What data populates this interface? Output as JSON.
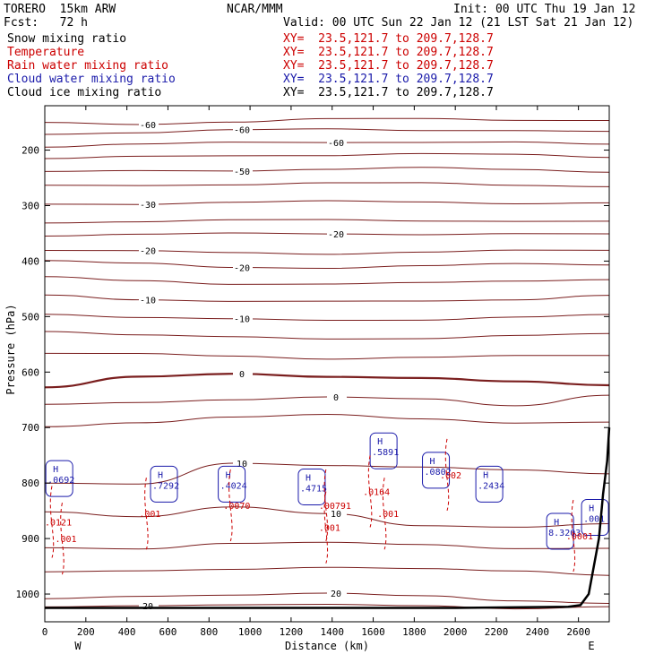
{
  "header": {
    "model": "TORERO  15km ARW",
    "center": "NCAR/MMM",
    "init": "Init: 00 UTC Thu 19 Jan 12",
    "fcst": "Fcst:   72 h",
    "valid": "Valid: 00 UTC Sun 22 Jan 12 (21 LST Sat 21 Jan 12)"
  },
  "fields": [
    {
      "name": "Snow mixing ratio",
      "xy": "XY=  23.5,121.7 to 209.7,128.7",
      "color": "#000000"
    },
    {
      "name": "Temperature",
      "xy": "XY=  23.5,121.7 to 209.7,128.7",
      "color": "#cc0000"
    },
    {
      "name": "Rain water mixing ratio",
      "xy": "XY=  23.5,121.7 to 209.7,128.7",
      "color": "#cc0000"
    },
    {
      "name": "Cloud water mixing ratio",
      "xy": "XY=  23.5,121.7 to 209.7,128.7",
      "color": "#1a1aaa"
    },
    {
      "name": "Cloud ice mixing ratio",
      "xy": "XY=  23.5,121.7 to 209.7,128.7",
      "color": "#000000"
    }
  ],
  "chart_data": {
    "type": "cross-section",
    "xlabel": "Distance (km)",
    "ylabel": "Pressure (hPa)",
    "xlim": [
      0,
      2750
    ],
    "ylim": [
      1050,
      120
    ],
    "x_ticks": [
      0,
      200,
      400,
      600,
      800,
      1000,
      1200,
      1400,
      1600,
      1800,
      2000,
      2200,
      2400,
      2600
    ],
    "y_ticks": [
      200,
      300,
      400,
      500,
      600,
      700,
      800,
      900,
      1000
    ],
    "endpoints": {
      "left": "W",
      "right": "E"
    },
    "colors": {
      "temperature": "#7a1e1e",
      "rain": "#cc0000",
      "cloud_water": "#1a1aaa",
      "terrain": "#000000"
    },
    "temperature_contours": [
      {
        "label": "-60",
        "p": [
          150,
          152,
          150,
          145,
          142,
          145,
          148
        ]
      },
      {
        "label": "-60",
        "p": [
          170,
          168,
          165,
          162,
          163,
          165,
          168
        ]
      },
      {
        "label": "-60",
        "p": [
          193,
          190,
          187,
          185,
          185,
          187,
          190
        ]
      },
      {
        "label": "",
        "p": [
          215,
          213,
          210,
          208,
          207,
          209,
          212
        ]
      },
      {
        "label": "-50",
        "p": [
          240,
          238,
          236,
          234,
          233,
          235,
          238
        ]
      },
      {
        "label": "",
        "p": [
          265,
          263,
          261,
          260,
          260,
          262,
          265
        ]
      },
      {
        "label": "-30",
        "p": [
          298,
          296,
          294,
          293,
          293,
          295,
          296
        ]
      },
      {
        "label": "",
        "p": [
          330,
          328,
          327,
          326,
          326,
          328,
          330
        ]
      },
      {
        "label": "-20",
        "p": [
          353,
          352,
          351,
          350,
          351,
          352,
          352
        ]
      },
      {
        "label": "-20",
        "p": [
          380,
          383,
          385,
          386,
          384,
          382,
          380
        ]
      },
      {
        "label": "-20",
        "p": [
          400,
          405,
          410,
          412,
          410,
          405,
          405
        ]
      },
      {
        "label": "",
        "p": [
          430,
          435,
          440,
          442,
          440,
          435,
          432
        ]
      },
      {
        "label": "-10",
        "p": [
          462,
          468,
          472,
          474,
          472,
          468,
          462
        ]
      },
      {
        "label": "-10",
        "p": [
          495,
          500,
          505,
          508,
          505,
          500,
          498
        ]
      },
      {
        "label": "",
        "p": [
          525,
          533,
          538,
          540,
          538,
          535,
          532
        ]
      },
      {
        "label": "",
        "p": [
          565,
          568,
          572,
          575,
          573,
          572,
          570
        ]
      },
      {
        "label": "0",
        "p": [
          628,
          610,
          602,
          607,
          612,
          618,
          622
        ],
        "bold": true
      },
      {
        "label": "0",
        "p": [
          660,
          655,
          648,
          645,
          650,
          660,
          640
        ]
      },
      {
        "label": "",
        "p": [
          700,
          690,
          680,
          678,
          685,
          690,
          690
        ]
      },
      {
        "label": "10",
        "p": [
          800,
          800,
          765,
          770,
          770,
          775,
          785
        ]
      },
      {
        "label": "10",
        "p": [
          850,
          860,
          845,
          855,
          875,
          880,
          875
        ]
      },
      {
        "label": "",
        "p": [
          915,
          920,
          910,
          905,
          910,
          920,
          918
        ]
      },
      {
        "label": "",
        "p": [
          960,
          960,
          955,
          950,
          955,
          960,
          965
        ]
      },
      {
        "label": "20",
        "p": [
          1010,
          1005,
          1000,
          998,
          1005,
          1012,
          1015
        ]
      },
      {
        "label": "20",
        "p": [
          1025,
          1020,
          1018,
          1020,
          1022,
          1025,
          1022
        ]
      }
    ],
    "cloud_water_labels": [
      {
        "text": ".0692",
        "x": 40,
        "p": 800
      },
      {
        "text": ".7292",
        "x": 550,
        "p": 810
      },
      {
        "text": ".4024",
        "x": 880,
        "p": 810
      },
      {
        "text": ".4715",
        "x": 1270,
        "p": 815
      },
      {
        "text": ".5891",
        "x": 1620,
        "p": 750
      },
      {
        "text": ".0802",
        "x": 1875,
        "p": 785
      },
      {
        "text": ".2434",
        "x": 2135,
        "p": 810
      },
      {
        "text": "8.3203",
        "x": 2480,
        "p": 895
      },
      {
        "text": ".001",
        "x": 2650,
        "p": 870
      }
    ],
    "rain_labels": [
      {
        "text": ".001",
        "x": 460,
        "p": 855
      },
      {
        "text": ".0070",
        "x": 870,
        "p": 840
      },
      {
        "text": ".00791",
        "x": 1335,
        "p": 840
      },
      {
        "text": ".001",
        "x": 1335,
        "p": 880
      },
      {
        "text": ".0164",
        "x": 1550,
        "p": 815
      },
      {
        "text": ".001",
        "x": 1620,
        "p": 855
      },
      {
        "text": ".002",
        "x": 1925,
        "p": 785
      },
      {
        "text": ".0001",
        "x": 2540,
        "p": 895
      },
      {
        "text": ".001",
        "x": 50,
        "p": 900
      },
      {
        "text": ".0121",
        "x": 0,
        "p": 870
      }
    ],
    "terrain": {
      "x": [
        0,
        2000,
        2550,
        2610,
        2650,
        2700,
        2720,
        2740,
        2750
      ],
      "p": [
        1025,
        1025,
        1023,
        1020,
        1000,
        900,
        820,
        760,
        700
      ]
    }
  }
}
